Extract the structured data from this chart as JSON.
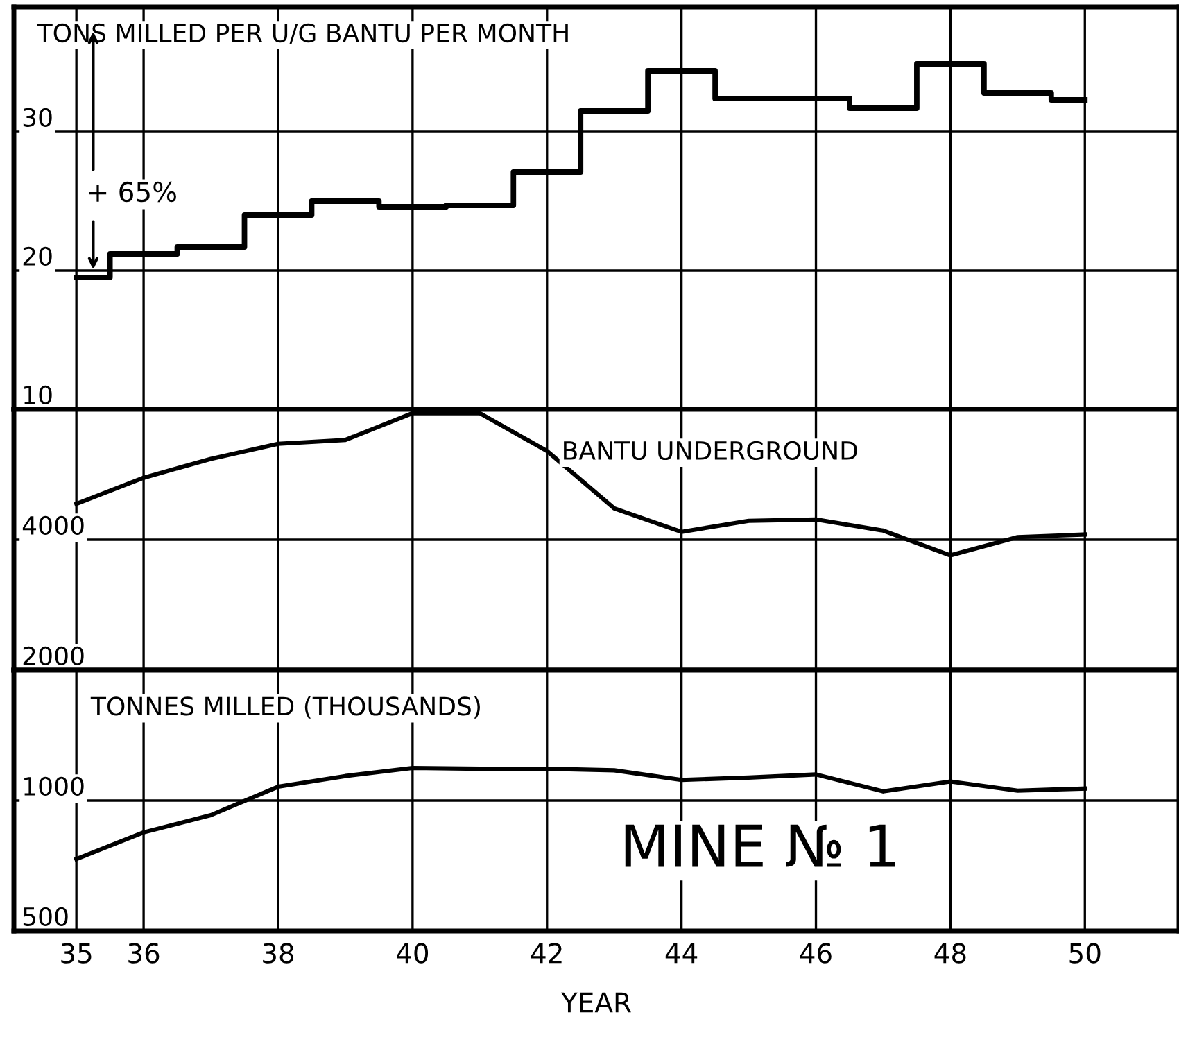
{
  "chart_data": [
    {
      "type": "step",
      "title": "TONS MILLED PER U/G BANTU PER MONTH",
      "x": [
        35,
        36,
        37,
        38,
        39,
        40,
        41,
        42,
        43,
        44,
        45,
        46,
        47,
        48,
        49,
        50
      ],
      "series": [
        {
          "color": "#000000",
          "values": [
            19.5,
            21.2,
            21.7,
            24.0,
            25.0,
            24.6,
            24.7,
            27.1,
            31.5,
            34.4,
            32.4,
            32.4,
            31.7,
            34.9,
            32.8,
            32.3
          ]
        }
      ],
      "annotations": [
        "+ 65%"
      ],
      "xlim": [
        34.07,
        51.4
      ],
      "ylim": [
        10,
        39
      ],
      "xticks": [
        35,
        36,
        38,
        40,
        42,
        44,
        46,
        48,
        50
      ],
      "yticks": [
        10,
        20,
        30
      ],
      "grid": true,
      "tick_labels": "y"
    },
    {
      "type": "line",
      "title": "BANTU UNDERGROUND",
      "x": [
        35,
        36,
        37,
        38,
        39,
        40,
        41,
        42,
        43,
        44,
        45,
        46,
        47,
        48,
        49,
        50
      ],
      "series": [
        {
          "color": "#000000",
          "values": [
            4550,
            4950,
            5240,
            5470,
            5530,
            5940,
            5940,
            5360,
            4480,
            4120,
            4290,
            4310,
            4140,
            3760,
            4040,
            4080
          ]
        }
      ],
      "xlim": [
        34.07,
        51.4
      ],
      "ylim": [
        2000,
        6000
      ],
      "xticks": [
        35,
        36,
        38,
        40,
        42,
        44,
        46,
        48,
        50
      ],
      "yticks": [
        2000,
        4000
      ],
      "grid": true,
      "tick_labels": "y"
    },
    {
      "type": "line",
      "title": "TONNES MILLED (THOUSANDS)",
      "xlabel": "YEAR",
      "x": [
        35,
        36,
        37,
        38,
        39,
        40,
        41,
        42,
        43,
        44,
        45,
        46,
        47,
        48,
        49,
        50
      ],
      "series": [
        {
          "color": "#000000",
          "values": [
            776,
            878,
            944,
            1053,
            1094,
            1125,
            1122,
            1122,
            1116,
            1079,
            1088,
            1100,
            1035,
            1073,
            1038,
            1046
          ]
        }
      ],
      "annotations": [
        "MINE № 1"
      ],
      "xlim": [
        34.07,
        51.4
      ],
      "ylim": [
        500,
        1500
      ],
      "xticks": [
        35,
        36,
        38,
        40,
        42,
        44,
        46,
        48,
        50
      ],
      "yticks": [
        500,
        1000
      ],
      "grid": true
    }
  ]
}
